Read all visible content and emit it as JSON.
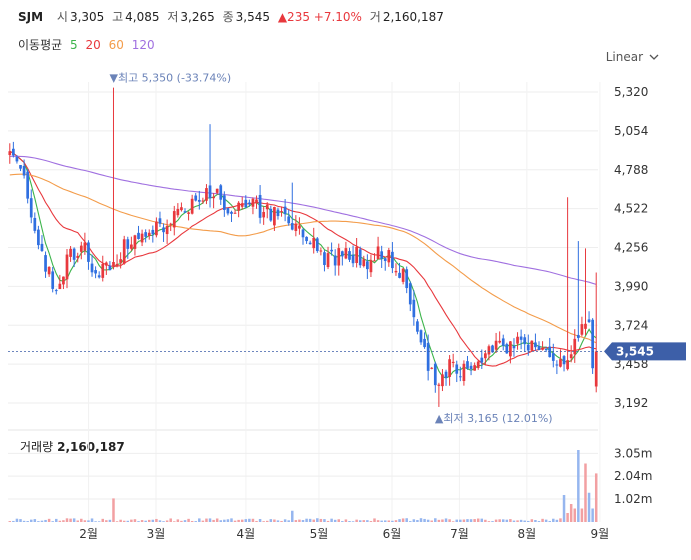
{
  "header": {
    "symbol": "SJM",
    "open_label": "시",
    "open": "3,305",
    "high_label": "고",
    "high": "4,085",
    "low_label": "저",
    "low": "3,265",
    "close_label": "종",
    "close": "3,545",
    "change": "▲235 +7.10%",
    "volume_label": "거",
    "volume": "2,160,187"
  },
  "ma_legend": {
    "label": "이동평균",
    "items": [
      "5",
      "20",
      "60",
      "120"
    ]
  },
  "scale_selector": {
    "value": "Linear"
  },
  "volume_panel": {
    "label": "거래량",
    "value": "2,160,187"
  },
  "colors": {
    "up": "#e8383d",
    "down": "#2f6fe0",
    "ma5": "#3cb44b",
    "ma20": "#e8383d",
    "ma60": "#f39c4a",
    "ma120": "#a070e0",
    "price_tag": "#3d5fa8",
    "annotation": "#6b83b8",
    "grid": "#eeeeee"
  },
  "chart_data": {
    "type": "candlestick",
    "y_axis": {
      "min": 3100,
      "max": 5400,
      "ticks": [
        "5,320",
        "5,054",
        "4,788",
        "4,522",
        "4,256",
        "3,990",
        "3,724",
        "3,458",
        "3,192"
      ]
    },
    "x_axis": {
      "ticks": [
        "2월",
        "3월",
        "4월",
        "5월",
        "6월",
        "7월",
        "8월",
        "9월"
      ]
    },
    "last_price_tag": "3,545",
    "annotations": [
      {
        "text": "▼최고 5,350 (-33.74%)",
        "value": 5350
      },
      {
        "text": "▲최저 3,165 (12.01%)",
        "value": 3165
      }
    ],
    "volume_axis": {
      "max": 3600000,
      "ticks": [
        "3.05m",
        "2.04m",
        "1.02m"
      ]
    },
    "key_prices": {
      "start_close": 4900,
      "peak_early_march": 5350,
      "mid_april_high": 5100,
      "late_june_low": 3165,
      "september_high": 4600,
      "last_close": 3545
    }
  }
}
